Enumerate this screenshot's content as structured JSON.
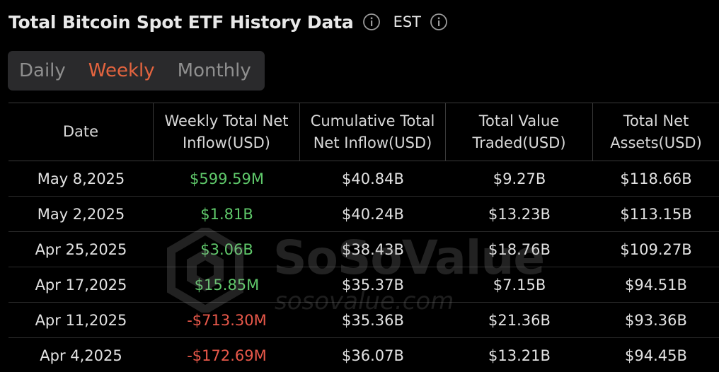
{
  "header": {
    "title": "Total Bitcoin Spot ETF History Data",
    "timezone": "EST"
  },
  "tabs": [
    {
      "label": "Daily",
      "active": false
    },
    {
      "label": "Weekly",
      "active": true
    },
    {
      "label": "Monthly",
      "active": false
    }
  ],
  "colors": {
    "accent": "#e4643f",
    "positive": "#5fc86a",
    "negative": "#e8584a"
  },
  "table": {
    "columns": [
      "Date",
      "Weekly Total Net Inflow(USD)",
      "Cumulative Total Net Inflow(USD)",
      "Total Value Traded(USD)",
      "Total Net Assets(USD)"
    ],
    "rows": [
      {
        "date": "May 8,2025",
        "inflow": "$599.59M",
        "cumulative": "$40.84B",
        "traded": "$9.27B",
        "assets": "$118.66B",
        "sign": "pos"
      },
      {
        "date": "May 2,2025",
        "inflow": "$1.81B",
        "cumulative": "$40.24B",
        "traded": "$13.23B",
        "assets": "$113.15B",
        "sign": "pos"
      },
      {
        "date": "Apr 25,2025",
        "inflow": "$3.06B",
        "cumulative": "$38.43B",
        "traded": "$18.76B",
        "assets": "$109.27B",
        "sign": "pos"
      },
      {
        "date": "Apr 17,2025",
        "inflow": "$15.85M",
        "cumulative": "$35.37B",
        "traded": "$7.15B",
        "assets": "$94.51B",
        "sign": "pos"
      },
      {
        "date": "Apr 11,2025",
        "inflow": "-$713.30M",
        "cumulative": "$35.36B",
        "traded": "$21.36B",
        "assets": "$93.36B",
        "sign": "neg"
      },
      {
        "date": "Apr 4,2025",
        "inflow": "-$172.69M",
        "cumulative": "$36.07B",
        "traded": "$13.21B",
        "assets": "$94.45B",
        "sign": "neg"
      }
    ]
  },
  "watermark": {
    "brand": "SoSoValue",
    "url": "sosovalue.com"
  }
}
